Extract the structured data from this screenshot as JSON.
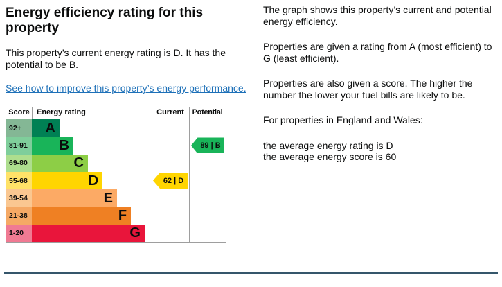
{
  "left": {
    "title": "Energy efficiency rating for this property",
    "summary": "This property’s current energy rating is D. It has the potential to be B.",
    "link_text": "See how to improve this property’s energy performance."
  },
  "right": {
    "paragraphs": [
      "The graph shows this property’s current and potential energy efficiency.",
      "Properties are given a rating from A (most efficient) to G (least efficient).",
      "Properties are also given a score. The higher the number the lower your fuel bills are likely to be.",
      "For properties in England and Wales:"
    ],
    "avg_rating": "the average energy rating is D",
    "avg_score": "the average energy score is 60"
  },
  "chart": {
    "type": "epc-rating-bar",
    "headers": [
      "Score",
      "Energy rating",
      "Current",
      "Potential"
    ],
    "bands": [
      {
        "score": "92+",
        "letter": "A",
        "color": "#008054",
        "tint": "#84b795",
        "width_pct": 23.1
      },
      {
        "score": "81-91",
        "letter": "B",
        "color": "#19b459",
        "tint": "#7fce9b",
        "width_pct": 34.7
      },
      {
        "score": "69-80",
        "letter": "C",
        "color": "#8dce46",
        "tint": "#aede8e",
        "width_pct": 46.8
      },
      {
        "score": "55-68",
        "letter": "D",
        "color": "#ffd500",
        "tint": "#ffe268",
        "width_pct": 59.0
      },
      {
        "score": "39-54",
        "letter": "E",
        "color": "#fcaa65",
        "tint": "#fac791",
        "width_pct": 71.1
      },
      {
        "score": "21-38",
        "letter": "F",
        "color": "#ef8023",
        "tint": "#f5a965",
        "width_pct": 82.7
      },
      {
        "score": "1-20",
        "letter": "G",
        "color": "#e9153b",
        "tint": "#f07a93",
        "width_pct": 94.2
      }
    ],
    "current": {
      "score": 62,
      "band": "D",
      "label": "62 | D",
      "color": "#ffd500"
    },
    "potential": {
      "score": 89,
      "band": "B",
      "label": "89 | B",
      "color": "#19b459"
    }
  },
  "colors": {
    "link": "#1d70b8",
    "divider": "#35566b",
    "chart_border": "#9e9e9e",
    "text": "#0b0c0c"
  }
}
